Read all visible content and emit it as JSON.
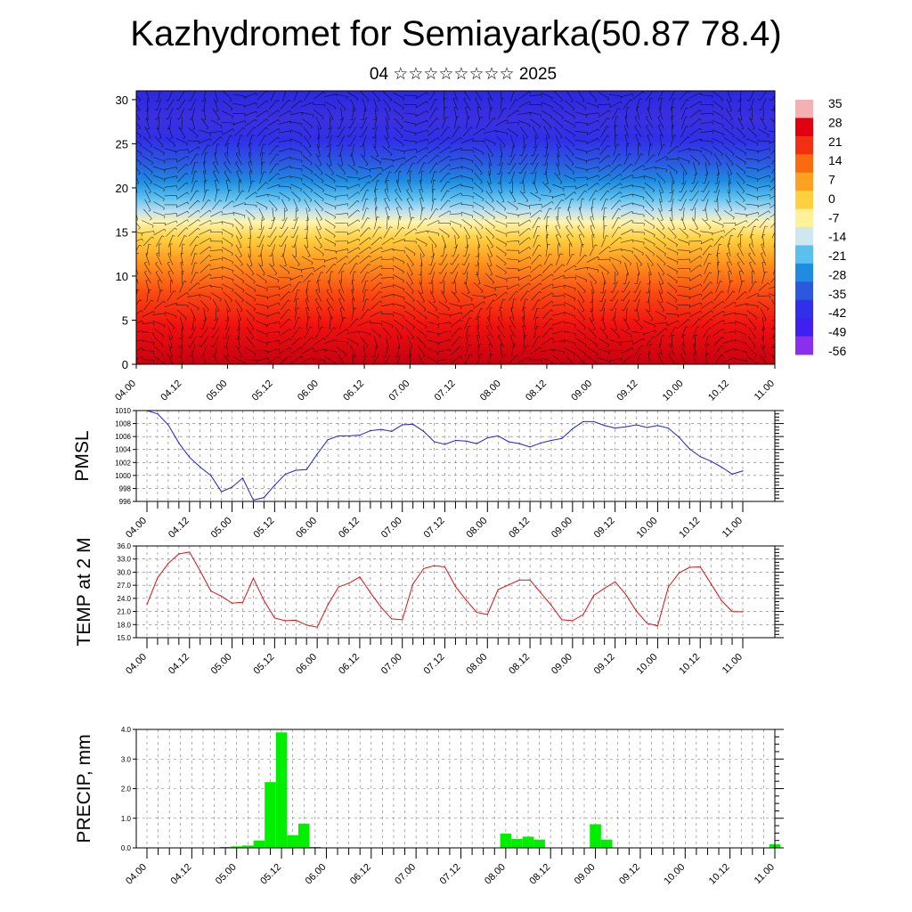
{
  "header": {
    "title": "Kazhydromet for Semiayarka(50.87 78.4)",
    "subtitle": "04 ☆☆☆☆☆☆☆☆ 2025"
  },
  "time_labels": [
    "04.00",
    "04.12",
    "05.00",
    "05.12",
    "06.00",
    "06.12",
    "07.00",
    "07.12",
    "08.00",
    "08.12",
    "09.00",
    "09.12",
    "10.00",
    "10.12",
    "11.00"
  ],
  "chart_data": [
    {
      "type": "heatmap",
      "title": "Kazhydromet for Semiayarka(50.87 78.4)",
      "subtitle": "04 ☆☆☆☆☆☆☆☆ 2025",
      "x": [
        "04.00",
        "04.12",
        "05.00",
        "05.12",
        "06.00",
        "06.12",
        "07.00",
        "07.12",
        "08.00",
        "08.12",
        "09.00",
        "09.12",
        "10.00",
        "10.12",
        "11.00"
      ],
      "y_ticks": [
        0,
        5,
        10,
        15,
        20,
        25,
        30
      ],
      "ylim": [
        0,
        31
      ],
      "colorbar_labels": [
        "35",
        "28",
        "21",
        "14",
        "7",
        "0",
        "-7",
        "-14",
        "-21",
        "-28",
        "-35",
        "-42",
        "-49",
        "-56"
      ],
      "colorbar_colors": [
        "#f5b0b4",
        "#e00010",
        "#f03010",
        "#fa6a10",
        "#ffa020",
        "#ffd040",
        "#fff09a",
        "#cde8f0",
        "#5cc0ef",
        "#1e8ce0",
        "#2c58e0",
        "#3030e8",
        "#4020f0",
        "#8a30ec"
      ],
      "overlay": "wind barbs"
    },
    {
      "type": "line",
      "ylabel": "PMSL",
      "y_ticks": [
        996,
        998,
        1000,
        1002,
        1004,
        1006,
        1008,
        1010
      ],
      "ylim": [
        996,
        1010
      ],
      "color": "#2020d0",
      "x": [
        0,
        1,
        2,
        3,
        4,
        5,
        6,
        7,
        8,
        9,
        10,
        11,
        12,
        13,
        14,
        15,
        16,
        17,
        18,
        19,
        20,
        21,
        22,
        23,
        24,
        25,
        26,
        27,
        28,
        29,
        30,
        31,
        32,
        33,
        34,
        35,
        36,
        37,
        38,
        39,
        40,
        41,
        42,
        43,
        44,
        45,
        46,
        47,
        48,
        49,
        50,
        51,
        52,
        53,
        54,
        55,
        56
      ],
      "values": [
        1010,
        1009.5,
        1007.8,
        1005,
        1002.8,
        1001.3,
        1000,
        997.5,
        998.2,
        999.6,
        996.2,
        996.6,
        998.5,
        1000.2,
        1000.8,
        1000.9,
        1003.3,
        1005.5,
        1006.1,
        1006.1,
        1006.2,
        1006.9,
        1007.1,
        1006.8,
        1007.8,
        1007.9,
        1006.8,
        1005.2,
        1004.8,
        1005.4,
        1005.3,
        1004.9,
        1005.8,
        1006.1,
        1005.2,
        1004.9,
        1004.4,
        1005,
        1005.4,
        1005.7,
        1007.2,
        1008.3,
        1008.3,
        1007.7,
        1007.3,
        1007.5,
        1007.8,
        1007.4,
        1007.7,
        1007.3,
        1005.9,
        1004.1,
        1002.9,
        1002.2,
        1001.3,
        1000.2,
        1000.7
      ]
    },
    {
      "type": "line",
      "ylabel": "TEMP at 2 M",
      "y_ticks": [
        "15.0",
        "18.0",
        "21.0",
        "24.0",
        "27.0",
        "30.0",
        "33.0",
        "36.0"
      ],
      "ylim": [
        15,
        36
      ],
      "color": "#dd1111",
      "x": [
        0,
        1,
        2,
        3,
        4,
        5,
        6,
        7,
        8,
        9,
        10,
        11,
        12,
        13,
        14,
        15,
        16,
        17,
        18,
        19,
        20,
        21,
        22,
        23,
        24,
        25,
        26,
        27,
        28,
        29,
        30,
        31,
        32,
        33,
        34,
        35,
        36,
        37,
        38,
        39,
        40,
        41,
        42,
        43,
        44,
        45,
        46,
        47,
        48,
        49,
        50,
        51,
        52,
        53,
        54,
        55,
        56
      ],
      "values": [
        22.6,
        28.7,
        32.0,
        34.2,
        34.6,
        30.3,
        25.7,
        24.5,
        22.9,
        23.1,
        28.6,
        23.5,
        19.5,
        18.9,
        19.0,
        17.9,
        17.4,
        22.5,
        26.6,
        27.5,
        28.9,
        25.3,
        22.0,
        19.3,
        19.1,
        27.3,
        30.8,
        31.5,
        31.2,
        26.7,
        23.6,
        20.8,
        20.3,
        26.0,
        27.1,
        28.2,
        28.2,
        25.3,
        22.4,
        19.1,
        18.9,
        20.3,
        24.7,
        26.3,
        27.8,
        24.9,
        21.1,
        18.3,
        17.7,
        26.6,
        29.8,
        31.1,
        31.2,
        27.4,
        23.5,
        21.0,
        20.9
      ]
    },
    {
      "type": "bar",
      "ylabel": "PRECIP, mm",
      "y_ticks": [
        "0.0",
        "1.0",
        "2.0",
        "3.0",
        "4.0"
      ],
      "ylim": [
        0,
        4
      ],
      "color": "#00ee00",
      "x_bins": [
        0,
        1,
        2,
        3,
        4,
        5,
        6,
        7,
        8,
        9,
        10,
        11,
        12,
        13,
        14,
        15,
        16,
        17,
        18,
        19,
        20,
        21,
        22,
        23,
        24,
        25,
        26,
        27,
        28,
        29,
        30,
        31,
        32,
        33,
        34,
        35,
        36,
        37,
        38,
        39,
        40,
        41,
        42,
        43,
        44,
        45,
        46,
        47,
        48,
        49,
        50,
        51,
        52,
        53,
        54,
        55,
        56
      ],
      "values": [
        0,
        0,
        0,
        0,
        0,
        0,
        0,
        0.03,
        0.05,
        0.08,
        0.25,
        2.22,
        3.9,
        0.43,
        0.82,
        0.03,
        0,
        0,
        0,
        0,
        0,
        0,
        0,
        0,
        0,
        0,
        0,
        0,
        0,
        0,
        0,
        0,
        0.48,
        0.3,
        0.38,
        0.28,
        0,
        0,
        0,
        0,
        0.8,
        0.28,
        0,
        0,
        0,
        0,
        0,
        0,
        0,
        0,
        0,
        0,
        0,
        0,
        0,
        0,
        0.12
      ]
    }
  ]
}
